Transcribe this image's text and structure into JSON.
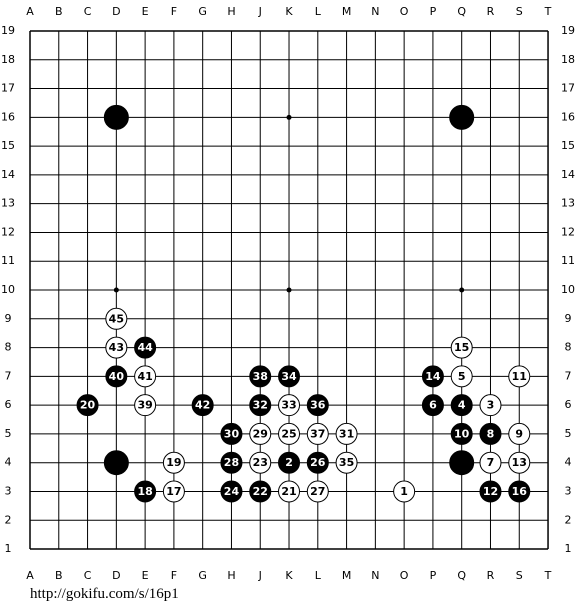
{
  "board": {
    "columns": [
      "A",
      "B",
      "C",
      "D",
      "E",
      "F",
      "G",
      "H",
      "J",
      "K",
      "L",
      "M",
      "N",
      "O",
      "P",
      "Q",
      "R",
      "S",
      "T"
    ],
    "rows": [
      19,
      18,
      17,
      16,
      15,
      14,
      13,
      12,
      11,
      10,
      9,
      8,
      7,
      6,
      5,
      4,
      3,
      2,
      1
    ],
    "star_points": [
      {
        "col": "D",
        "row": 16
      },
      {
        "col": "K",
        "row": 16
      },
      {
        "col": "Q",
        "row": 16
      },
      {
        "col": "D",
        "row": 10
      },
      {
        "col": "K",
        "row": 10
      },
      {
        "col": "Q",
        "row": 10
      },
      {
        "col": "D",
        "row": 4
      },
      {
        "col": "K",
        "row": 4
      },
      {
        "col": "Q",
        "row": 4
      }
    ],
    "stones": [
      {
        "col": "D",
        "row": 16,
        "color": "black"
      },
      {
        "col": "Q",
        "row": 16,
        "color": "black"
      },
      {
        "col": "D",
        "row": 4,
        "color": "black"
      },
      {
        "col": "Q",
        "row": 4,
        "color": "black"
      },
      {
        "col": "O",
        "row": 3,
        "color": "white",
        "label": 1
      },
      {
        "col": "K",
        "row": 4,
        "color": "black",
        "label": 2
      },
      {
        "col": "R",
        "row": 6,
        "color": "white",
        "label": 3
      },
      {
        "col": "Q",
        "row": 6,
        "color": "black",
        "label": 4
      },
      {
        "col": "Q",
        "row": 7,
        "color": "white",
        "label": 5
      },
      {
        "col": "P",
        "row": 6,
        "color": "black",
        "label": 6
      },
      {
        "col": "R",
        "row": 4,
        "color": "white",
        "label": 7
      },
      {
        "col": "R",
        "row": 5,
        "color": "black",
        "label": 8
      },
      {
        "col": "S",
        "row": 5,
        "color": "white",
        "label": 9
      },
      {
        "col": "Q",
        "row": 5,
        "color": "black",
        "label": 10
      },
      {
        "col": "S",
        "row": 7,
        "color": "white",
        "label": 11
      },
      {
        "col": "R",
        "row": 3,
        "color": "black",
        "label": 12
      },
      {
        "col": "S",
        "row": 4,
        "color": "white",
        "label": 13
      },
      {
        "col": "P",
        "row": 7,
        "color": "black",
        "label": 14
      },
      {
        "col": "Q",
        "row": 8,
        "color": "white",
        "label": 15
      },
      {
        "col": "S",
        "row": 3,
        "color": "black",
        "label": 16
      },
      {
        "col": "F",
        "row": 3,
        "color": "white",
        "label": 17
      },
      {
        "col": "E",
        "row": 3,
        "color": "black",
        "label": 18
      },
      {
        "col": "F",
        "row": 4,
        "color": "white",
        "label": 19
      },
      {
        "col": "C",
        "row": 6,
        "color": "black",
        "label": 20
      },
      {
        "col": "K",
        "row": 3,
        "color": "white",
        "label": 21
      },
      {
        "col": "J",
        "row": 3,
        "color": "black",
        "label": 22
      },
      {
        "col": "J",
        "row": 4,
        "color": "white",
        "label": 23
      },
      {
        "col": "H",
        "row": 3,
        "color": "black",
        "label": 24
      },
      {
        "col": "K",
        "row": 5,
        "color": "white",
        "label": 25
      },
      {
        "col": "L",
        "row": 4,
        "color": "black",
        "label": 26
      },
      {
        "col": "L",
        "row": 3,
        "color": "white",
        "label": 27
      },
      {
        "col": "H",
        "row": 4,
        "color": "black",
        "label": 28
      },
      {
        "col": "J",
        "row": 5,
        "color": "white",
        "label": 29
      },
      {
        "col": "H",
        "row": 5,
        "color": "black",
        "label": 30
      },
      {
        "col": "M",
        "row": 5,
        "color": "white",
        "label": 31
      },
      {
        "col": "J",
        "row": 6,
        "color": "black",
        "label": 32
      },
      {
        "col": "K",
        "row": 6,
        "color": "white",
        "label": 33
      },
      {
        "col": "K",
        "row": 7,
        "color": "black",
        "label": 34
      },
      {
        "col": "M",
        "row": 4,
        "color": "white",
        "label": 35
      },
      {
        "col": "L",
        "row": 6,
        "color": "black",
        "label": 36
      },
      {
        "col": "L",
        "row": 5,
        "color": "white",
        "label": 37
      },
      {
        "col": "J",
        "row": 7,
        "color": "black",
        "label": 38
      },
      {
        "col": "E",
        "row": 6,
        "color": "white",
        "label": 39
      },
      {
        "col": "D",
        "row": 7,
        "color": "black",
        "label": 40
      },
      {
        "col": "E",
        "row": 7,
        "color": "white",
        "label": 41
      },
      {
        "col": "G",
        "row": 6,
        "color": "black",
        "label": 42
      },
      {
        "col": "D",
        "row": 8,
        "color": "white",
        "label": 43
      },
      {
        "col": "E",
        "row": 8,
        "color": "black",
        "label": 44
      },
      {
        "col": "D",
        "row": 9,
        "color": "white",
        "label": 45
      }
    ]
  },
  "footer": {
    "url": "http://gokifu.com/s/16p1"
  }
}
